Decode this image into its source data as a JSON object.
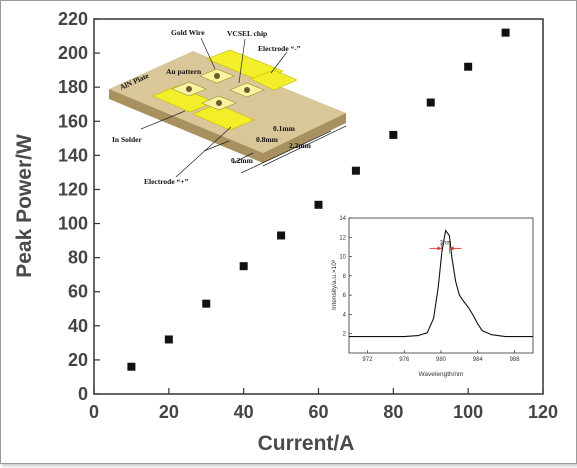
{
  "chart_data": [
    {
      "type": "scatter",
      "title": "",
      "xlabel": "Current/A",
      "ylabel": "Peak Power/W",
      "xlim": [
        0,
        120
      ],
      "ylim": [
        0,
        220
      ],
      "xticks": [
        0,
        20,
        40,
        60,
        80,
        100,
        120
      ],
      "yticks": [
        0,
        20,
        40,
        60,
        80,
        100,
        120,
        140,
        160,
        180,
        200,
        220
      ],
      "grid": false,
      "marker_color": "#111111",
      "series": [
        {
          "x": [
            10,
            20,
            30,
            40,
            50,
            60,
            70,
            80,
            90,
            100,
            110
          ],
          "y": [
            16,
            32,
            53,
            75,
            93,
            111,
            131,
            152,
            171,
            192,
            212
          ]
        }
      ]
    },
    {
      "type": "line",
      "title": "",
      "xlabel": "Wavelength/nm",
      "ylabel": "Intensity/a.u.×10³",
      "xlim": [
        970,
        990
      ],
      "ylim": [
        0,
        14
      ],
      "xticks": [
        972,
        976,
        980,
        984,
        988
      ],
      "yticks": [
        2,
        4,
        6,
        8,
        10,
        12,
        14
      ],
      "fwhm_label": "3nm",
      "line_color": "#111111",
      "annotation_color": "#e0312d",
      "series": [
        {
          "x": [
            970,
            976,
            977.5,
            978.5,
            979.2,
            979.7,
            980.1,
            980.5,
            980.9,
            981.2,
            981.6,
            982.0,
            982.5,
            983.0,
            983.5,
            984.0,
            984.5,
            985.5,
            987,
            990
          ],
          "y": [
            1.7,
            1.7,
            1.8,
            2.1,
            3.6,
            6.8,
            10.5,
            12.7,
            12.2,
            9.8,
            7.4,
            6.0,
            5.3,
            4.7,
            3.9,
            3.0,
            2.3,
            1.9,
            1.7,
            1.7
          ]
        }
      ]
    }
  ],
  "diagram": {
    "labels": {
      "gold_wire": "Gold Wire",
      "vcsel_chip": "VCSEL chip",
      "au_pattern": "Au pattern",
      "aln_plate": "AlN Plate",
      "electrode_minus": "Electrode “-”",
      "electrode_plus": "Electrode “+”",
      "in_solder": "In Solder",
      "dim_01": "0.1mm",
      "dim_08": "0.8mm",
      "dim_22": "2.2mm",
      "dim_02": "0.2mm"
    },
    "colors": {
      "plate": "#d9c79a",
      "plate_edge": "#a8915e",
      "pad": "#f2ee2a",
      "chip": "#f7f3a0"
    }
  }
}
